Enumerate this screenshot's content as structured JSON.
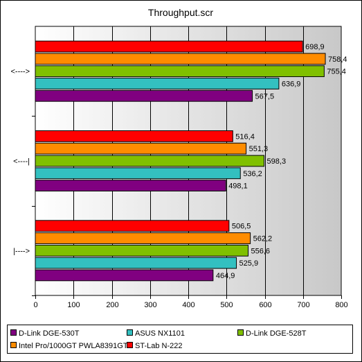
{
  "chart_data": {
    "type": "bar",
    "orientation": "horizontal",
    "title": "Throughput.scr",
    "categories": [
      "<---->",
      "<----|",
      "|---->"
    ],
    "series": [
      {
        "name": "ST-Lab N-222",
        "color": "#ff0000",
        "values": [
          698.9,
          516.4,
          506.5
        ]
      },
      {
        "name": "Intel Pro/1000GT PWLA8391GT",
        "color": "#ff8c00",
        "values": [
          758.4,
          551.3,
          562.2
        ]
      },
      {
        "name": "D-Link DGE-528T",
        "color": "#80c000",
        "values": [
          755.4,
          598.3,
          556.6
        ]
      },
      {
        "name": "ASUS NX1101",
        "color": "#33c0c0",
        "values": [
          636.9,
          536.2,
          525.9
        ]
      },
      {
        "name": "D-Link DGE-530T",
        "color": "#800080",
        "values": [
          567.5,
          498.1,
          464.9
        ]
      }
    ],
    "data_labels": [
      [
        "698,9",
        "516,4",
        "506,5"
      ],
      [
        "758,4",
        "551,3",
        "562,2"
      ],
      [
        "755,4",
        "598,3",
        "556,6"
      ],
      [
        "636,9",
        "536,2",
        "525,9"
      ],
      [
        "567,5",
        "498,1",
        "464,9"
      ]
    ],
    "xlim": [
      0,
      800
    ],
    "xticks": [
      "0",
      "100",
      "200",
      "300",
      "400",
      "500",
      "600",
      "700",
      "800"
    ],
    "grid": true,
    "legend_position": "bottom",
    "legend_order": [
      "D-Link DGE-530T",
      "ASUS NX1101",
      "D-Link DGE-528T",
      "Intel Pro/1000GT PWLA8391GT",
      "ST-Lab N-222"
    ],
    "legend_colors": [
      "#800080",
      "#33c0c0",
      "#80c000",
      "#ff8c00",
      "#ff0000"
    ]
  }
}
